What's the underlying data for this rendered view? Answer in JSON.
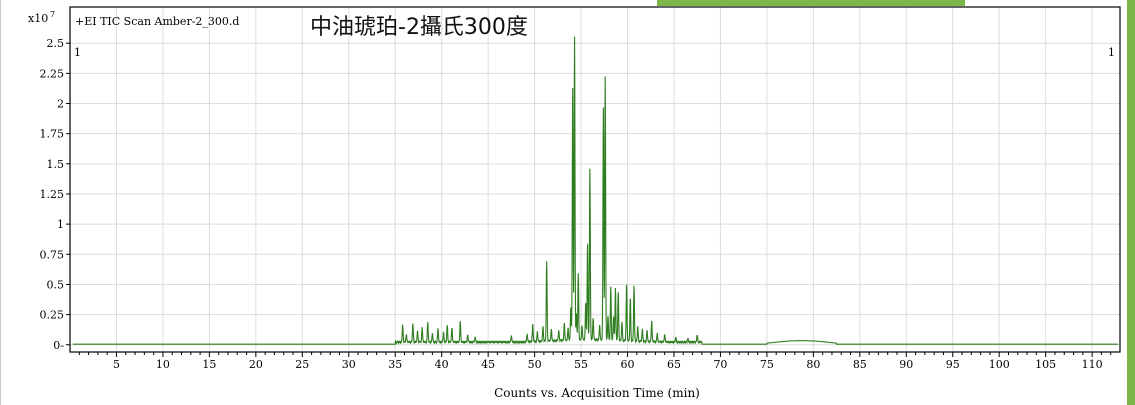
{
  "colors": {
    "trace": "#2e7d1f",
    "accent_bar": "#7ab648",
    "grid": "#dcdcdc",
    "frame": "#000000"
  },
  "header": {
    "y_multiplier": "x10",
    "y_exponent": "7",
    "scan_label": "+EI TIC Scan Amber-2_300.d",
    "title": "中油琥珀-2攝氏300度",
    "marker_left": "1",
    "marker_right": "1"
  },
  "chart_data": {
    "type": "line",
    "title": "中油琥珀-2攝氏300度",
    "xlabel": "Counts vs. Acquisition Time (min)",
    "ylabel": "",
    "y_multiplier": "x10^7",
    "xlim": [
      0,
      113
    ],
    "ylim": [
      -0.06,
      2.8
    ],
    "grid": true,
    "x_ticks": [
      5,
      10,
      15,
      20,
      25,
      30,
      35,
      40,
      45,
      50,
      55,
      60,
      65,
      70,
      75,
      80,
      85,
      90,
      95,
      100,
      105,
      110
    ],
    "y_ticks": [
      0,
      0.25,
      0.5,
      0.75,
      1,
      1.25,
      1.5,
      1.75,
      2,
      2.25,
      2.5
    ],
    "y_tick_labels": [
      "0-",
      "0.25",
      "0.5",
      "0.75",
      "1",
      "1.25",
      "1.5",
      "1.75",
      "2",
      "2.25",
      "2.5"
    ],
    "series": [
      {
        "name": "+EI TIC Scan Amber-2_300.d",
        "baseline": 0.005,
        "peaks": [
          [
            35.8,
            0.14
          ],
          [
            36.2,
            0.06
          ],
          [
            36.9,
            0.15
          ],
          [
            37.4,
            0.09
          ],
          [
            37.9,
            0.12
          ],
          [
            38.5,
            0.16
          ],
          [
            39.0,
            0.07
          ],
          [
            39.6,
            0.11
          ],
          [
            40.2,
            0.08
          ],
          [
            40.6,
            0.14
          ],
          [
            41.1,
            0.12
          ],
          [
            42.0,
            0.17
          ],
          [
            42.8,
            0.06
          ],
          [
            43.6,
            0.04
          ],
          [
            47.5,
            0.05
          ],
          [
            49.2,
            0.06
          ],
          [
            49.8,
            0.14
          ],
          [
            50.3,
            0.08
          ],
          [
            50.9,
            0.12
          ],
          [
            51.3,
            0.66
          ],
          [
            51.8,
            0.1
          ],
          [
            52.6,
            0.08
          ],
          [
            53.2,
            0.14
          ],
          [
            53.6,
            0.1
          ],
          [
            53.9,
            0.27
          ],
          [
            54.1,
            2.09
          ],
          [
            54.3,
            2.51
          ],
          [
            54.5,
            0.22
          ],
          [
            54.7,
            0.55
          ],
          [
            55.1,
            0.12
          ],
          [
            55.5,
            0.3
          ],
          [
            55.7,
            0.8
          ],
          [
            55.95,
            1.42
          ],
          [
            56.3,
            0.18
          ],
          [
            57.0,
            0.12
          ],
          [
            57.4,
            1.93
          ],
          [
            57.6,
            2.18
          ],
          [
            57.9,
            0.2
          ],
          [
            58.2,
            0.44
          ],
          [
            58.5,
            0.2
          ],
          [
            58.7,
            0.43
          ],
          [
            59.0,
            0.4
          ],
          [
            59.4,
            0.15
          ],
          [
            59.9,
            0.46
          ],
          [
            60.3,
            0.35
          ],
          [
            60.7,
            0.46
          ],
          [
            61.1,
            0.12
          ],
          [
            61.6,
            0.1
          ],
          [
            62.1,
            0.09
          ],
          [
            62.6,
            0.17
          ],
          [
            63.2,
            0.07
          ],
          [
            64.0,
            0.06
          ],
          [
            65.2,
            0.04
          ],
          [
            66.5,
            0.03
          ],
          [
            67.5,
            0.06
          ]
        ],
        "humps": [
          {
            "x0": 75.0,
            "x1": 82.5,
            "y": 0.035
          }
        ]
      }
    ]
  }
}
